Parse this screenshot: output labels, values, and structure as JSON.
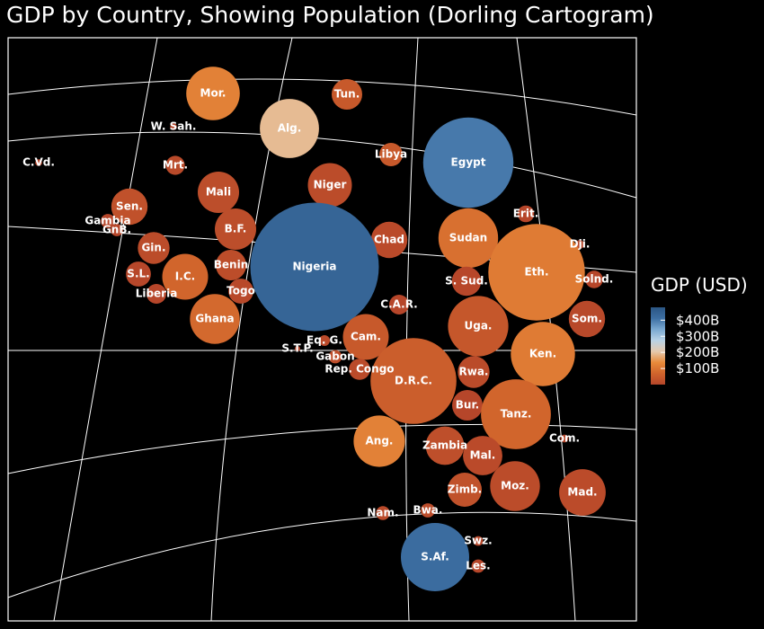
{
  "chart_data": {
    "type": "bubble-map",
    "title": "GDP by Country, Showing Population (Dorling Cartogram)",
    "legend": {
      "title": "GDP (USD)",
      "placement": "right",
      "ticks": [
        "$400B",
        "$300B",
        "$200B",
        "$100B"
      ],
      "tick_values": [
        400,
        300,
        200,
        100
      ],
      "range": [
        0,
        480
      ],
      "color_stops": [
        "#b5452a",
        "#d0642c",
        "#e88a3a",
        "#e6c9ad",
        "#b9d3e6",
        "#7aa9d1",
        "#3d6fa3",
        "#2b5684"
      ]
    },
    "countries": [
      {
        "label": "Mor.",
        "gdp": 120,
        "population_m": 37
      },
      {
        "label": "Tun.",
        "gdp": 45,
        "population_m": 12
      },
      {
        "label": "Alg.",
        "gdp": 190,
        "population_m": 45
      },
      {
        "label": "W. Sah.",
        "gdp": 1,
        "population_m": 0.6
      },
      {
        "label": "Libya",
        "gdp": 45,
        "population_m": 7
      },
      {
        "label": "Egypt",
        "gdp": 400,
        "population_m": 105
      },
      {
        "label": "C.Vd.",
        "gdp": 2,
        "population_m": 0.6
      },
      {
        "label": "Mrt.",
        "gdp": 10,
        "population_m": 4.7
      },
      {
        "label": "Mali",
        "gdp": 19,
        "population_m": 22
      },
      {
        "label": "Niger",
        "gdp": 15,
        "population_m": 25
      },
      {
        "label": "Sen.",
        "gdp": 27,
        "population_m": 17
      },
      {
        "label": "Gambia",
        "gdp": 2,
        "population_m": 2.6
      },
      {
        "label": "GnB.",
        "gdp": 2,
        "population_m": 2
      },
      {
        "label": "Erit.",
        "gdp": 2,
        "population_m": 3.6
      },
      {
        "label": "B.F.",
        "gdp": 19,
        "population_m": 22
      },
      {
        "label": "Chad",
        "gdp": 12,
        "population_m": 17
      },
      {
        "label": "Sudan",
        "gdp": 90,
        "population_m": 46
      },
      {
        "label": "Dji.",
        "gdp": 3,
        "population_m": 1
      },
      {
        "label": "Gin.",
        "gdp": 16,
        "population_m": 13
      },
      {
        "label": "Nigeria",
        "gdp": 440,
        "population_m": 213
      },
      {
        "label": "Eth.",
        "gdp": 110,
        "population_m": 120
      },
      {
        "label": "Benin",
        "gdp": 17,
        "population_m": 12
      },
      {
        "label": "S.L.",
        "gdp": 4,
        "population_m": 8
      },
      {
        "label": "I.C.",
        "gdp": 70,
        "population_m": 27
      },
      {
        "label": "S. Sud.",
        "gdp": 5,
        "population_m": 11
      },
      {
        "label": "Solnd.",
        "gdp": 3,
        "population_m": 4
      },
      {
        "label": "Togo",
        "gdp": 8,
        "population_m": 8
      },
      {
        "label": "Liberia",
        "gdp": 3,
        "population_m": 5
      },
      {
        "label": "C.A.R.",
        "gdp": 2,
        "population_m": 5
      },
      {
        "label": "Ghana",
        "gdp": 77,
        "population_m": 32
      },
      {
        "label": "Uga.",
        "gdp": 40,
        "population_m": 47
      },
      {
        "label": "Som.",
        "gdp": 8,
        "population_m": 17
      },
      {
        "label": "Cam.",
        "gdp": 45,
        "population_m": 27
      },
      {
        "label": "Eq. G.",
        "gdp": 12,
        "population_m": 1.5
      },
      {
        "label": "S.T.P.",
        "gdp": 1,
        "population_m": 0.2
      },
      {
        "label": "Gabon",
        "gdp": 20,
        "population_m": 2.3
      },
      {
        "label": "Ken.",
        "gdp": 110,
        "population_m": 53
      },
      {
        "label": "Rep. Congo",
        "gdp": 13,
        "population_m": 5.8
      },
      {
        "label": "D.R.C.",
        "gdp": 55,
        "population_m": 95
      },
      {
        "label": "Rwa.",
        "gdp": 13,
        "population_m": 13
      },
      {
        "label": "Bur.",
        "gdp": 3,
        "population_m": 12
      },
      {
        "label": "Tanz.",
        "gdp": 70,
        "population_m": 63
      },
      {
        "label": "Ang.",
        "gdp": 120,
        "population_m": 34
      },
      {
        "label": "Zambia",
        "gdp": 22,
        "population_m": 19
      },
      {
        "label": "Com.",
        "gdp": 1,
        "population_m": 0.8
      },
      {
        "label": "Mal.",
        "gdp": 12,
        "population_m": 20
      },
      {
        "label": "Zimb.",
        "gdp": 28,
        "population_m": 15
      },
      {
        "label": "Moz.",
        "gdp": 16,
        "population_m": 32
      },
      {
        "label": "Mad.",
        "gdp": 14,
        "population_m": 28
      },
      {
        "label": "Nam.",
        "gdp": 12,
        "population_m": 2.5
      },
      {
        "label": "Bwa.",
        "gdp": 18,
        "population_m": 2.6
      },
      {
        "label": "Swz.",
        "gdp": 5,
        "population_m": 1.2
      },
      {
        "label": "S.Af.",
        "gdp": 420,
        "population_m": 60
      },
      {
        "label": "Les.",
        "gdp": 2,
        "population_m": 2.3
      }
    ]
  }
}
